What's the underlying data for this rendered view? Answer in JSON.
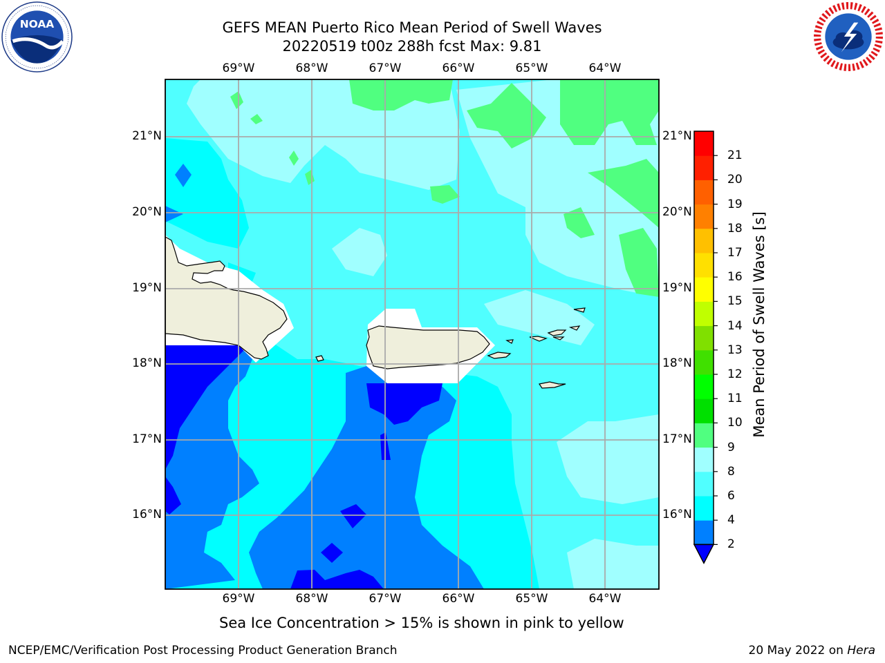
{
  "title_line1": "GEFS MEAN Puerto Rico Mean Period of Swell Waves",
  "title_line2": "20220519 t00z 288h fcst   Max: 9.81",
  "logos": {
    "left": "noaa-logo",
    "right": "national-weather-service-logo"
  },
  "map": {
    "projection": "lat-lon",
    "lon_range": [
      -70.0,
      -63.25
    ],
    "lat_range": [
      15.0,
      21.75
    ],
    "lon_ticks": [
      "69°W",
      "68°W",
      "67°W",
      "66°W",
      "65°W",
      "64°W"
    ],
    "lat_ticks": [
      "21°N",
      "20°N",
      "19°N",
      "18°N",
      "17°N",
      "16°N"
    ],
    "grid": true
  },
  "colorbar": {
    "label": "Mean Period of Swell Waves [s]",
    "levels": [
      2,
      4,
      6,
      8,
      9,
      10,
      11,
      12,
      13,
      14,
      15,
      16,
      17,
      18,
      19,
      20,
      21
    ],
    "tick_labels": [
      "2",
      "4",
      "6",
      "8",
      "9",
      "10",
      "11",
      "12",
      "13",
      "14",
      "15",
      "16",
      "17",
      "18",
      "19",
      "20",
      "21"
    ],
    "colors": [
      "#0080ff",
      "#00ffff",
      "#50ffff",
      "#a0ffff",
      "#50ff80",
      "#00e000",
      "#00ff00",
      "#40e000",
      "#80e000",
      "#c0ff00",
      "#ffff00",
      "#ffe000",
      "#ffc000",
      "#ff8000",
      "#ff6000",
      "#ff2000",
      "#ff0000"
    ],
    "under_color": "#0000ff",
    "extend": "min"
  },
  "land_color": "#efefdc",
  "caption": "Sea Ice Concentration > 15% is shown in pink to yellow",
  "footer_left": "NCEP/EMC/Verification Post Processing Product Generation Branch",
  "footer_right_date": "20 May 2022 on ",
  "footer_right_machine": "Hera"
}
